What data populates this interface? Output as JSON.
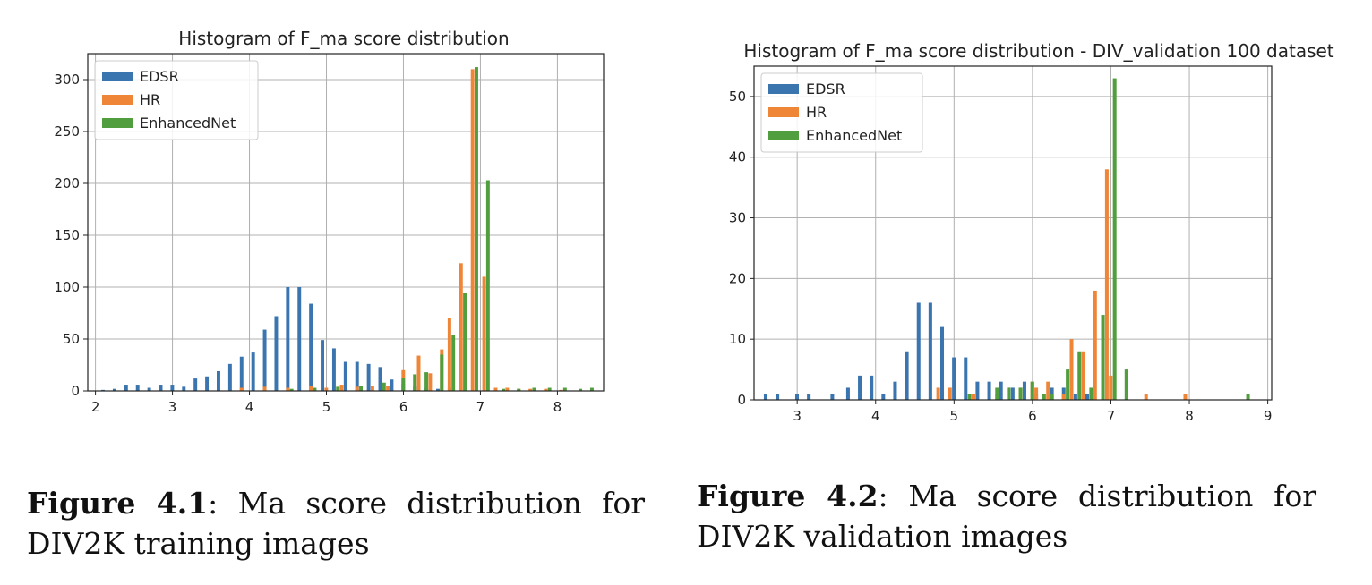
{
  "chart_data": [
    {
      "type": "bar",
      "title": "Histogram of F_ma score distribution",
      "xlabel": "",
      "ylabel": "",
      "xlim": [
        1.9,
        8.6
      ],
      "ylim": [
        0,
        325
      ],
      "xticks": [
        2,
        3,
        4,
        5,
        6,
        7,
        8
      ],
      "yticks": [
        0,
        50,
        100,
        150,
        200,
        250,
        300
      ],
      "grid": true,
      "legend_position": "top-left",
      "bin_width": 0.15,
      "series": [
        {
          "name": "EDSR",
          "color": "#3b75af",
          "x": [
            2.15,
            2.3,
            2.45,
            2.6,
            2.75,
            2.9,
            3.05,
            3.2,
            3.35,
            3.5,
            3.65,
            3.8,
            3.95,
            4.1,
            4.25,
            4.4,
            4.55,
            4.7,
            4.85,
            5.0,
            5.15,
            5.3,
            5.45,
            5.6,
            5.75,
            5.9,
            6.05,
            6.2,
            6.35,
            6.5,
            6.65
          ],
          "values": [
            1,
            2,
            6,
            6,
            3,
            6,
            6,
            4,
            12,
            14,
            19,
            26,
            33,
            37,
            59,
            72,
            100,
            100,
            84,
            49,
            41,
            28,
            28,
            26,
            23,
            11,
            7,
            5,
            3,
            2,
            3
          ]
        },
        {
          "name": "HR",
          "color": "#ef8536",
          "x": [
            3.9,
            4.2,
            4.5,
            4.8,
            5.0,
            5.2,
            5.4,
            5.6,
            5.8,
            6.0,
            6.2,
            6.35,
            6.5,
            6.6,
            6.75,
            6.9,
            7.05,
            7.2,
            7.35,
            7.5,
            7.65,
            7.85,
            8.05
          ],
          "values": [
            3,
            4,
            3,
            5,
            3,
            6,
            4,
            5,
            5,
            20,
            34,
            17,
            40,
            70,
            123,
            310,
            110,
            3,
            3,
            2,
            2,
            2,
            1
          ]
        },
        {
          "name": "EnhancedNet",
          "color": "#519e3e",
          "x": [
            4.5,
            4.8,
            5.1,
            5.4,
            5.7,
            5.95,
            6.1,
            6.25,
            6.45,
            6.6,
            6.75,
            6.9,
            7.05,
            7.25,
            7.45,
            7.65,
            7.85,
            8.05,
            8.25,
            8.4
          ],
          "values": [
            2,
            3,
            4,
            5,
            8,
            12,
            16,
            18,
            35,
            54,
            94,
            312,
            203,
            2,
            2,
            3,
            3,
            3,
            2,
            3
          ]
        }
      ]
    },
    {
      "type": "bar",
      "title": "Histogram of F_ma score distribution - DIV_validation 100 dataset",
      "xlabel": "",
      "ylabel": "",
      "xlim": [
        2.45,
        9.05
      ],
      "ylim": [
        0,
        55
      ],
      "xticks": [
        3,
        4,
        5,
        6,
        7,
        8,
        9
      ],
      "yticks": [
        0,
        10,
        20,
        30,
        40,
        50
      ],
      "grid": true,
      "legend_position": "top-left",
      "bin_width": 0.15,
      "series": [
        {
          "name": "EDSR",
          "color": "#3b75af",
          "x": [
            2.65,
            2.8,
            3.05,
            3.2,
            3.5,
            3.7,
            3.85,
            4.0,
            4.15,
            4.3,
            4.45,
            4.6,
            4.75,
            4.9,
            5.05,
            5.2,
            5.35,
            5.5,
            5.65,
            5.8,
            5.95,
            6.1,
            6.3,
            6.45,
            6.6,
            6.75
          ],
          "values": [
            1,
            1,
            1,
            1,
            1,
            2,
            4,
            4,
            1,
            3,
            8,
            16,
            16,
            12,
            7,
            7,
            3,
            3,
            3,
            2,
            3,
            1,
            2,
            2,
            1,
            1
          ]
        },
        {
          "name": "HR",
          "color": "#ef8536",
          "x": [
            4.8,
            4.95,
            5.25,
            5.55,
            5.7,
            5.85,
            6.0,
            6.05,
            6.2,
            6.4,
            6.5,
            6.65,
            6.8,
            6.95,
            7.0,
            7.45,
            7.95
          ],
          "values": [
            2,
            2,
            1,
            1,
            2,
            2,
            3,
            2,
            3,
            1,
            10,
            8,
            18,
            38,
            4,
            1,
            1
          ]
        },
        {
          "name": "EnhancedNet",
          "color": "#519e3e",
          "x": [
            5.15,
            5.5,
            5.65,
            5.8,
            5.95,
            6.1,
            6.2,
            6.4,
            6.55,
            6.7,
            6.85,
            7.0,
            7.15,
            8.7
          ],
          "values": [
            1,
            2,
            2,
            2,
            3,
            1,
            1,
            5,
            8,
            2,
            14,
            53,
            5,
            1
          ]
        }
      ]
    }
  ],
  "captions": [
    {
      "label": "Figure 4.1",
      "text": ": Ma score distribution for DIV2K training images"
    },
    {
      "label": "Figure 4.2",
      "text": ": Ma score distribution for DIV2K validation images"
    }
  ]
}
